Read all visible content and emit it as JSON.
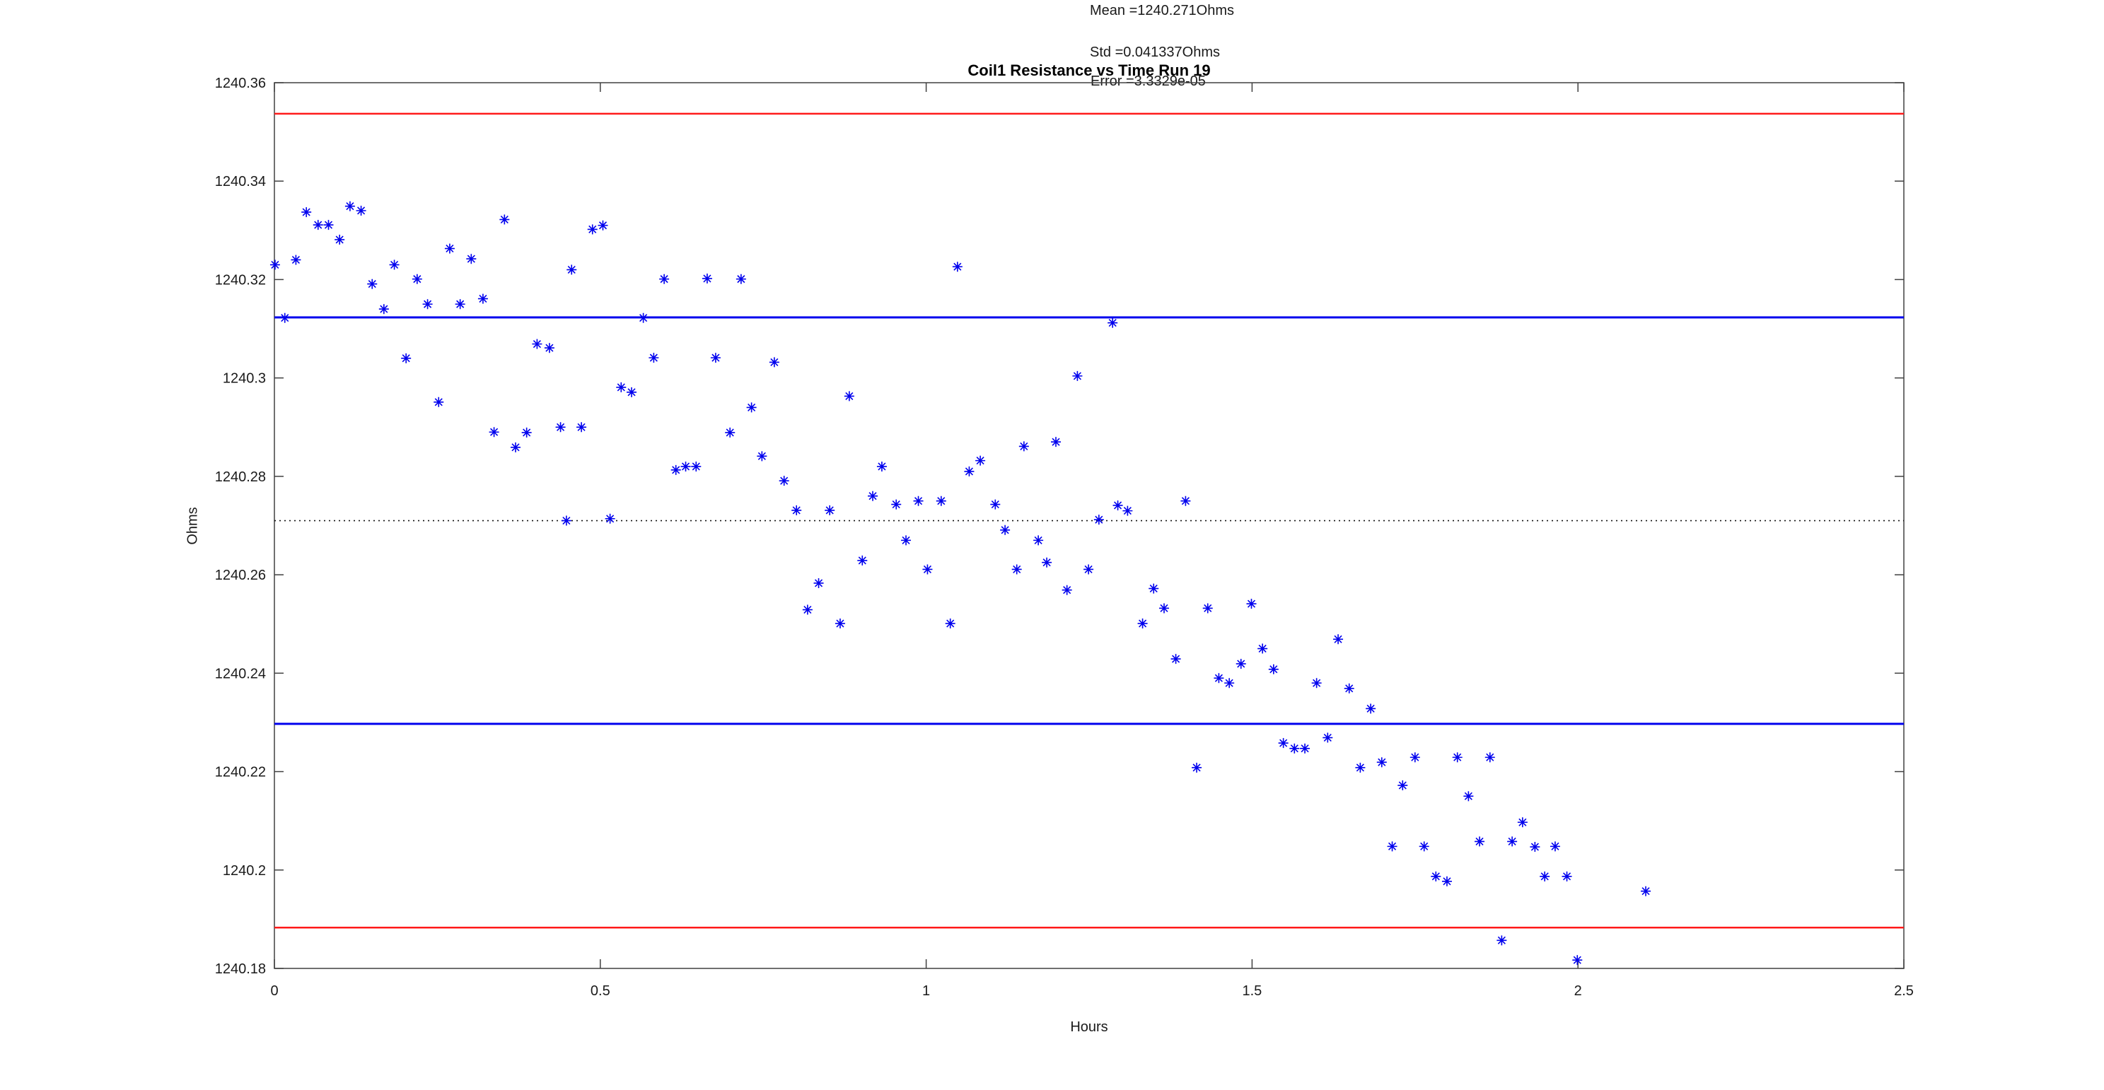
{
  "figure": {
    "title": "Coil1 Resistance vs Time Run 19",
    "xlabel": "Hours",
    "ylabel": "Ohms",
    "annotations": {
      "mean": "Mean =1240.271Ohms",
      "std": "Std =0.041337Ohms",
      "error": "Error =3.3329e-05"
    }
  },
  "chart_data": {
    "type": "scatter",
    "title": "Coil1 Resistance vs Time Run 19",
    "xlabel": "Hours",
    "ylabel": "Ohms",
    "xlim": [
      0,
      2.5
    ],
    "ylim": [
      1240.18,
      1240.36
    ],
    "x_ticks": [
      0,
      0.5,
      1,
      1.5,
      2,
      2.5
    ],
    "x_tick_labels": [
      "0",
      "0.5",
      "1",
      "1.5",
      "2",
      "2.5"
    ],
    "y_ticks": [
      1240.18,
      1240.2,
      1240.22,
      1240.24,
      1240.26,
      1240.28,
      1240.3,
      1240.32,
      1240.34,
      1240.36
    ],
    "y_tick_labels": [
      "1240.18",
      "1240.2",
      "1240.22",
      "1240.24",
      "1240.26",
      "1240.28",
      "1240.3",
      "1240.32",
      "1240.34",
      "1240.36"
    ],
    "grid": false,
    "legend": null,
    "marker": "asterisk",
    "marker_color": "#0000ee",
    "axis_color": "#404040",
    "stats": {
      "mean_ohms": 1240.271,
      "std_ohms": 0.041337,
      "error": 3.3329e-05
    },
    "reference_lines": [
      {
        "name": "mean-dotted-line",
        "value": 1240.271,
        "style": "dotted",
        "color": "#111111",
        "width": 1.6
      },
      {
        "name": "plus-one-sigma-line",
        "value": 1240.3123,
        "style": "solid",
        "color": "#0000ee",
        "width": 3
      },
      {
        "name": "minus-one-sigma-line",
        "value": 1240.2297,
        "style": "solid",
        "color": "#0000ee",
        "width": 3
      },
      {
        "name": "plus-two-sigma-line",
        "value": 1240.3537,
        "style": "solid",
        "color": "#ff1a1a",
        "width": 2.5
      },
      {
        "name": "minus-two-sigma-line",
        "value": 1240.1883,
        "style": "solid",
        "color": "#ff1a1a",
        "width": 2.5
      }
    ],
    "points": [
      [
        0.001,
        1240.323
      ],
      [
        0.016,
        1240.3122
      ],
      [
        0.033,
        1240.324
      ],
      [
        0.049,
        1240.3337
      ],
      [
        0.067,
        1240.3311
      ],
      [
        0.083,
        1240.3311
      ],
      [
        0.1,
        1240.3281
      ],
      [
        0.116,
        1240.3349
      ],
      [
        0.133,
        1240.334
      ],
      [
        0.15,
        1240.3191
      ],
      [
        0.168,
        1240.314
      ],
      [
        0.184,
        1240.323
      ],
      [
        0.202,
        1240.304
      ],
      [
        0.219,
        1240.3201
      ],
      [
        0.235,
        1240.315
      ],
      [
        0.252,
        1240.2951
      ],
      [
        0.269,
        1240.3263
      ],
      [
        0.285,
        1240.315
      ],
      [
        0.302,
        1240.3242
      ],
      [
        0.32,
        1240.3161
      ],
      [
        0.337,
        1240.289
      ],
      [
        0.353,
        1240.3322
      ],
      [
        0.37,
        1240.2859
      ],
      [
        0.387,
        1240.2889
      ],
      [
        0.403,
        1240.3069
      ],
      [
        0.422,
        1240.3061
      ],
      [
        0.439,
        1240.29
      ],
      [
        0.448,
        1240.271
      ],
      [
        0.456,
        1240.322
      ],
      [
        0.471,
        1240.29
      ],
      [
        0.488,
        1240.3302
      ],
      [
        0.504,
        1240.331
      ],
      [
        0.515,
        1240.2714
      ],
      [
        0.532,
        1240.2981
      ],
      [
        0.548,
        1240.2971
      ],
      [
        0.566,
        1240.3122
      ],
      [
        0.582,
        1240.3041
      ],
      [
        0.598,
        1240.3201
      ],
      [
        0.616,
        1240.2813
      ],
      [
        0.631,
        1240.282
      ],
      [
        0.647,
        1240.282
      ],
      [
        0.664,
        1240.3202
      ],
      [
        0.677,
        1240.3041
      ],
      [
        0.699,
        1240.2889
      ],
      [
        0.716,
        1240.3201
      ],
      [
        0.732,
        1240.294
      ],
      [
        0.748,
        1240.2841
      ],
      [
        0.767,
        1240.3032
      ],
      [
        0.782,
        1240.2791
      ],
      [
        0.801,
        1240.2731
      ],
      [
        0.818,
        1240.2529
      ],
      [
        0.835,
        1240.2583
      ],
      [
        0.852,
        1240.2731
      ],
      [
        0.868,
        1240.2501
      ],
      [
        0.882,
        1240.2963
      ],
      [
        0.902,
        1240.2629
      ],
      [
        0.918,
        1240.276
      ],
      [
        0.932,
        1240.282
      ],
      [
        0.954,
        1240.2743
      ],
      [
        0.969,
        1240.267
      ],
      [
        0.988,
        1240.275
      ],
      [
        1.002,
        1240.2611
      ],
      [
        1.023,
        1240.275
      ],
      [
        1.037,
        1240.2501
      ],
      [
        1.048,
        1240.3226
      ],
      [
        1.066,
        1240.281
      ],
      [
        1.083,
        1240.2832
      ],
      [
        1.106,
        1240.2743
      ],
      [
        1.121,
        1240.2691
      ],
      [
        1.139,
        1240.2611
      ],
      [
        1.15,
        1240.2861
      ],
      [
        1.172,
        1240.267
      ],
      [
        1.185,
        1240.2625
      ],
      [
        1.199,
        1240.287
      ],
      [
        1.216,
        1240.2569
      ],
      [
        1.232,
        1240.3004
      ],
      [
        1.249,
        1240.2611
      ],
      [
        1.265,
        1240.2712
      ],
      [
        1.286,
        1240.3112
      ],
      [
        1.294,
        1240.2741
      ],
      [
        1.309,
        1240.273
      ],
      [
        1.332,
        1240.2501
      ],
      [
        1.349,
        1240.2572
      ],
      [
        1.365,
        1240.2532
      ],
      [
        1.383,
        1240.2429
      ],
      [
        1.398,
        1240.275
      ],
      [
        1.415,
        1240.2208
      ],
      [
        1.432,
        1240.2532
      ],
      [
        1.449,
        1240.239
      ],
      [
        1.465,
        1240.238
      ],
      [
        1.483,
        1240.2419
      ],
      [
        1.499,
        1240.2541
      ],
      [
        1.516,
        1240.245
      ],
      [
        1.533,
        1240.2408
      ],
      [
        1.548,
        1240.2258
      ],
      [
        1.565,
        1240.2247
      ],
      [
        1.581,
        1240.2247
      ],
      [
        1.599,
        1240.238
      ],
      [
        1.616,
        1240.2269
      ],
      [
        1.632,
        1240.2469
      ],
      [
        1.649,
        1240.2369
      ],
      [
        1.666,
        1240.2208
      ],
      [
        1.682,
        1240.2328
      ],
      [
        1.699,
        1240.2219
      ],
      [
        1.715,
        1240.2048
      ],
      [
        1.731,
        1240.2172
      ],
      [
        1.75,
        1240.2229
      ],
      [
        1.764,
        1240.2048
      ],
      [
        1.782,
        1240.1987
      ],
      [
        1.799,
        1240.1977
      ],
      [
        1.815,
        1240.2229
      ],
      [
        1.832,
        1240.215
      ],
      [
        1.849,
        1240.2058
      ],
      [
        1.865,
        1240.2229
      ],
      [
        1.883,
        1240.1857
      ],
      [
        1.899,
        1240.2058
      ],
      [
        1.915,
        1240.2097
      ],
      [
        1.934,
        1240.2047
      ],
      [
        1.949,
        1240.1987
      ],
      [
        1.965,
        1240.2048
      ],
      [
        1.983,
        1240.1987
      ],
      [
        1.999,
        1240.1817
      ],
      [
        2.104,
        1240.1957
      ]
    ]
  }
}
